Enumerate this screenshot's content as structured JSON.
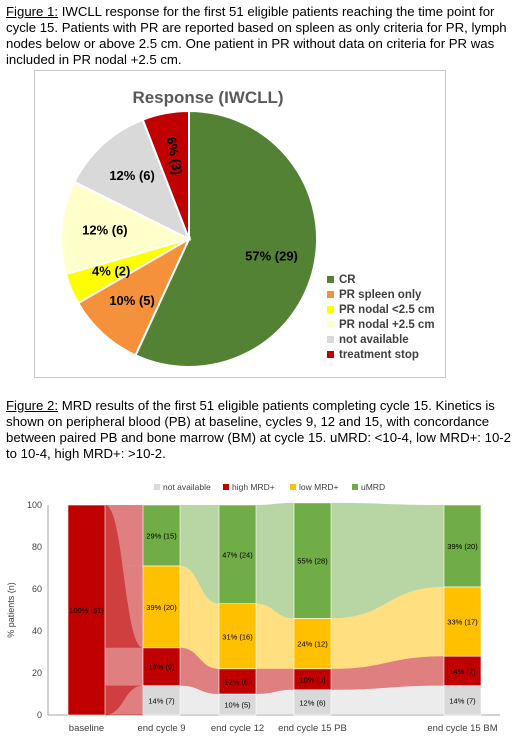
{
  "figure1": {
    "caption_label": "Figure 1:",
    "caption_text": " IWCLL response for the first 51 eligible patients reaching the time point for cycle 15. Patients with PR are reported based on spleen as only criteria for PR, lymph nodes below or above 2.5 cm. One patient in PR without data on criteria for PR was included in PR nodal +2.5 cm."
  },
  "figure2": {
    "caption_label": "Figure 2:",
    "caption_text": " MRD results of the first 51 eligible patients completing cycle 15. Kinetics is shown on peripheral blood (PB) at baseline, cycles 9, 12 and 15, with concordance between paired PB and bone marrow (BM) at cycle 15. uMRD: <10-4, low MRD+: 10-2 to 10-4, high MRD+: >10-2."
  },
  "colors": {
    "cr": "#548235",
    "pr_spleen": "#f4913a",
    "pr_nodal_lt": "#ffff00",
    "pr_nodal_gt": "#ffffcc",
    "not_available": "#d9d9d9",
    "treatment_stop": "#c00000",
    "umrd": "#70ad47",
    "low_mrd": "#ffc000",
    "high_mrd": "#c00000",
    "na_mrd": "#d9d9d9"
  },
  "chart_data": [
    {
      "type": "pie",
      "title": "Response (IWCLL)",
      "legend_position": "right",
      "slices": [
        {
          "name": "CR",
          "value": 29,
          "label": "57% (29)",
          "color": "#548235"
        },
        {
          "name": "PR spleen only",
          "value": 5,
          "label": "10% (5)",
          "color": "#f4913a"
        },
        {
          "name": "PR nodal <2.5 cm",
          "value": 2,
          "label": "4% (2)",
          "color": "#ffff00"
        },
        {
          "name": "PR nodal +2.5 cm",
          "value": 6,
          "label": "12% (6)",
          "color": "#ffffcc"
        },
        {
          "name": "not available",
          "value": 6,
          "label": "12% (6)",
          "color": "#d9d9d9"
        },
        {
          "name": "treatment stop",
          "value": 3,
          "label": "6% (3)",
          "color": "#c00000"
        }
      ]
    },
    {
      "type": "bar",
      "stacked": true,
      "ylabel": "% patients (n)",
      "ylim": [
        0,
        100
      ],
      "yticks": [
        0,
        20,
        40,
        60,
        80,
        100
      ],
      "categories": [
        "baseline",
        "end cycle 9",
        "end cycle 12",
        "end cycle 15 PB",
        "end cycle 15 BM"
      ],
      "legend_position": "top",
      "series": [
        {
          "name": "not available",
          "color": "#d9d9d9",
          "values": [
            0,
            14,
            10,
            12,
            14
          ],
          "labels": [
            "",
            "14% (7)",
            "10% (5)",
            "12% (6)",
            "14% (7)"
          ]
        },
        {
          "name": "high MRD+",
          "color": "#c00000",
          "values": [
            100,
            18,
            12,
            10,
            14
          ],
          "labels": [
            "100% (51)",
            "18% (9)",
            "12% (6)",
            "10% (5)",
            "14% (7)"
          ]
        },
        {
          "name": "low MRD+",
          "color": "#ffc000",
          "values": [
            0,
            39,
            31,
            24,
            33
          ],
          "labels": [
            "",
            "39% (20)",
            "31% (16)",
            "24% (12)",
            "33% (17)"
          ]
        },
        {
          "name": "uMRD",
          "color": "#70ad47",
          "values": [
            0,
            29,
            47,
            55,
            39
          ],
          "labels": [
            "",
            "29% (15)",
            "47% (24)",
            "55% (28)",
            "39% (20)"
          ]
        }
      ]
    }
  ]
}
